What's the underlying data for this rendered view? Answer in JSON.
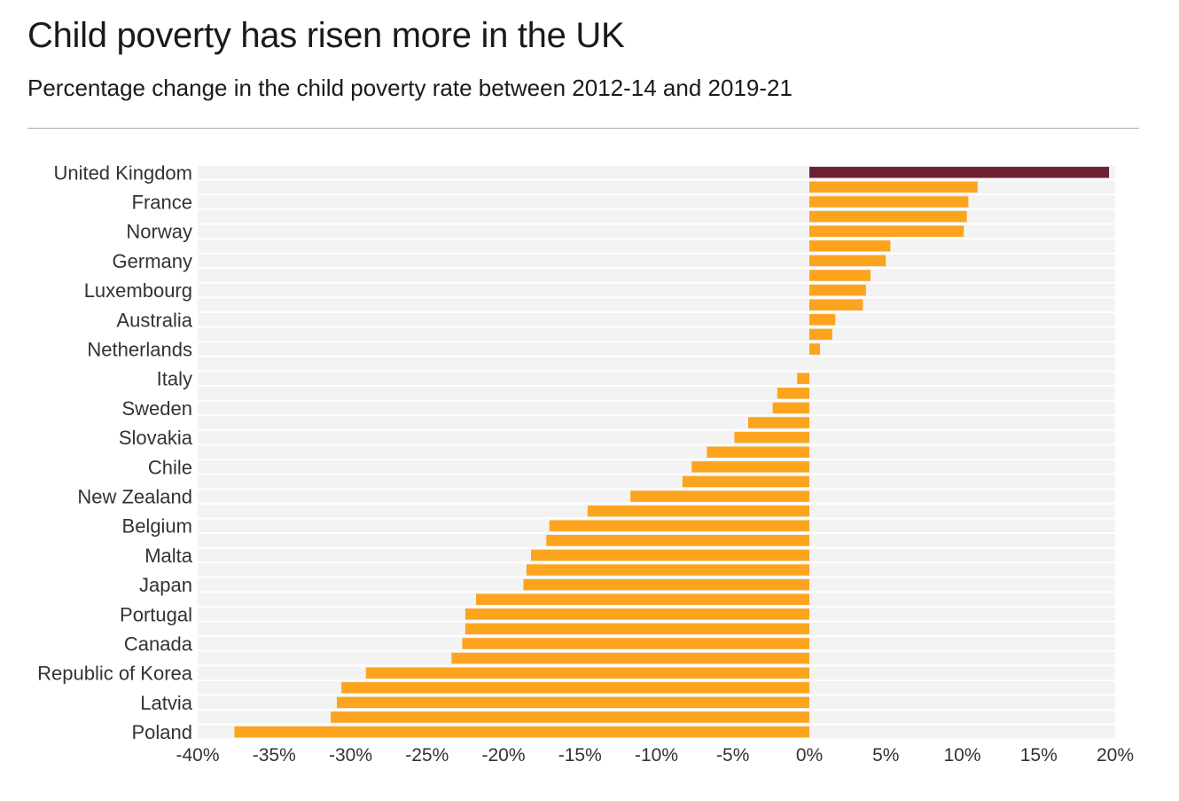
{
  "title": "Child poverty has risen more in the UK",
  "subtitle": "Percentage change in the child poverty rate between 2012-14 and 2019-21",
  "colors": {
    "highlight": "#6e2133",
    "bar": "#fca41e",
    "band": "#f3f3f3",
    "text": "#333333"
  },
  "chart_data": {
    "type": "bar",
    "orientation": "horizontal",
    "xlim": [
      -40,
      20
    ],
    "x_ticks": [
      "-40%",
      "-35%",
      "-30%",
      "-25%",
      "-20%",
      "-15%",
      "-10%",
      "-5%",
      "0%",
      "5%",
      "10%",
      "15%",
      "20%"
    ],
    "rows": [
      {
        "label": "United Kingdom",
        "value": 19.6,
        "highlight": true
      },
      {
        "label": "",
        "value": 11.0
      },
      {
        "label": "France",
        "value": 10.4
      },
      {
        "label": "",
        "value": 10.3
      },
      {
        "label": "Norway",
        "value": 10.1
      },
      {
        "label": "",
        "value": 5.3
      },
      {
        "label": "Germany",
        "value": 5.0
      },
      {
        "label": "",
        "value": 4.0
      },
      {
        "label": "Luxembourg",
        "value": 3.7
      },
      {
        "label": "",
        "value": 3.5
      },
      {
        "label": "Australia",
        "value": 1.7
      },
      {
        "label": "",
        "value": 1.5
      },
      {
        "label": "Netherlands",
        "value": 0.7
      },
      {
        "label": "",
        "value": 0.0
      },
      {
        "label": "Italy",
        "value": -0.8
      },
      {
        "label": "",
        "value": -2.1
      },
      {
        "label": "Sweden",
        "value": -2.4
      },
      {
        "label": "",
        "value": -4.0
      },
      {
        "label": "Slovakia",
        "value": -4.9
      },
      {
        "label": "",
        "value": -6.7
      },
      {
        "label": "Chile",
        "value": -7.7
      },
      {
        "label": "",
        "value": -8.3
      },
      {
        "label": "New Zealand",
        "value": -11.7
      },
      {
        "label": "",
        "value": -14.5
      },
      {
        "label": "Belgium",
        "value": -17.0
      },
      {
        "label": "",
        "value": -17.2
      },
      {
        "label": "Malta",
        "value": -18.2
      },
      {
        "label": "",
        "value": -18.5
      },
      {
        "label": "Japan",
        "value": -18.7
      },
      {
        "label": "",
        "value": -21.8
      },
      {
        "label": "Portugal",
        "value": -22.5
      },
      {
        "label": "",
        "value": -22.5
      },
      {
        "label": "Canada",
        "value": -22.7
      },
      {
        "label": "",
        "value": -23.4
      },
      {
        "label": "Republic of Korea",
        "value": -29.0
      },
      {
        "label": "",
        "value": -30.6
      },
      {
        "label": "Latvia",
        "value": -30.9
      },
      {
        "label": "",
        "value": -31.3
      },
      {
        "label": "Poland",
        "value": -37.6
      }
    ]
  }
}
